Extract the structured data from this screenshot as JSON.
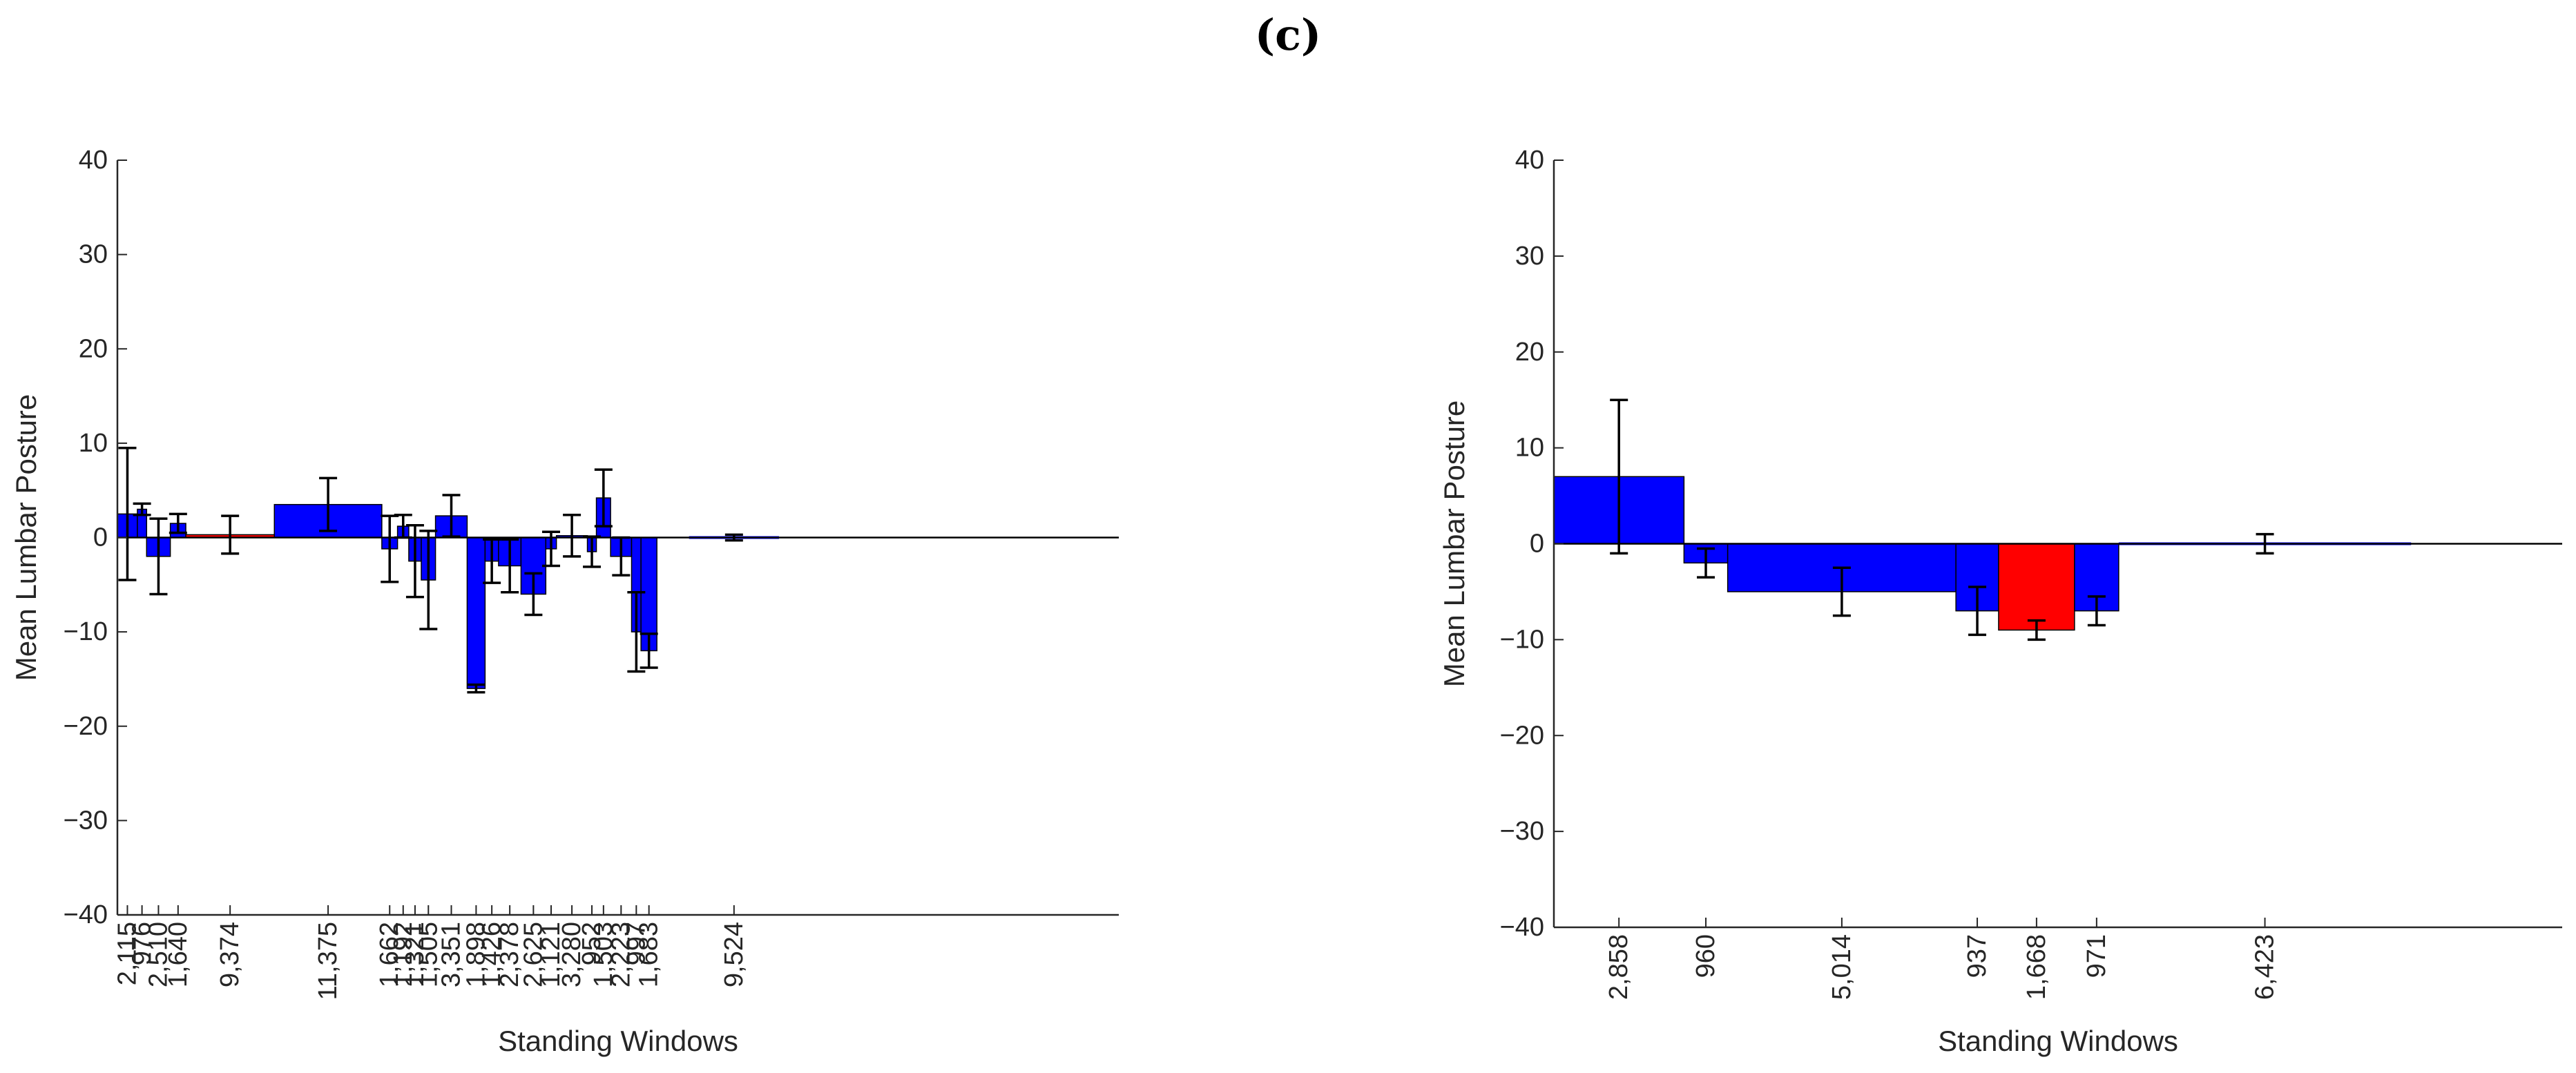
{
  "panel_label": "(c)",
  "chart_data": [
    {
      "type": "bar",
      "title": "",
      "xlabel": "Standing Windows",
      "ylabel": "Mean Lumbar Posture",
      "ylim": [
        -40,
        40
      ],
      "yticks": [
        "40",
        "30",
        "20",
        "10",
        "0",
        "−10",
        "−20",
        "−30",
        "−40"
      ],
      "x_extent": [
        0,
        106000
      ],
      "note": "Bar widths are proportional to standing window duration; categories are the duration labels.",
      "categories": [
        "2,115",
        "976",
        "2,510",
        "1,640",
        "9,374",
        "11,375",
        "1,662",
        "1,192",
        "1,321",
        "1,505",
        "3,351",
        "1,898",
        "1,426",
        "2,378",
        "2,625",
        "1,121",
        "3,280",
        "952",
        "1,503",
        "2,223",
        "997",
        "1,683",
        "9,524"
      ],
      "series": [
        {
          "name": "Mean Lumbar Posture",
          "durations": [
            2115,
            976,
            2510,
            1640,
            9374,
            11375,
            1662,
            1192,
            1321,
            1505,
            3351,
            1898,
            1426,
            2378,
            2625,
            1121,
            3280,
            952,
            1503,
            2223,
            997,
            1683,
            9524
          ],
          "gaps_before": [
            0,
            0,
            0,
            0,
            0,
            0,
            0,
            0,
            0,
            0,
            0,
            0,
            0,
            0,
            0,
            0,
            0,
            0,
            0,
            0,
            0,
            0,
            3400
          ],
          "values": [
            2.5,
            3,
            -2,
            1.5,
            0.3,
            3.5,
            -1.2,
            1.2,
            -2.5,
            -4.5,
            2.3,
            -16,
            -2.5,
            -3,
            -6,
            -1.2,
            0.2,
            -1.5,
            4.2,
            -2,
            -10,
            -12,
            0
          ],
          "errors": [
            7,
            0.6,
            4,
            1,
            2,
            2.8,
            3.5,
            1.2,
            3.8,
            5.2,
            2.2,
            0.4,
            2.3,
            2.8,
            2.2,
            1.8,
            2.2,
            1.6,
            3,
            2,
            4.2,
            1.8,
            0.3
          ],
          "colors": [
            "#0000ff",
            "#0000ff",
            "#0000ff",
            "#0000ff",
            "#ff0000",
            "#0000ff",
            "#0000ff",
            "#0000ff",
            "#0000ff",
            "#0000ff",
            "#0000ff",
            "#0000ff",
            "#0000ff",
            "#0000ff",
            "#0000ff",
            "#0000ff",
            "#0000ff",
            "#0000ff",
            "#0000ff",
            "#0000ff",
            "#0000ff",
            "#0000ff",
            "#0000ff"
          ]
        }
      ]
    },
    {
      "type": "bar",
      "title": "",
      "xlabel": "Standing Windows",
      "ylabel": "Mean Lumbar Posture",
      "ylim": [
        -40,
        40
      ],
      "yticks": [
        "40",
        "30",
        "20",
        "10",
        "0",
        "−10",
        "−20",
        "−30",
        "−40"
      ],
      "x_extent": [
        0,
        22150
      ],
      "note": "Bar widths are proportional to standing window duration; categories are the duration labels.",
      "categories": [
        "2,858",
        "960",
        "5,014",
        "937",
        "1,668",
        "971",
        "6,423"
      ],
      "series": [
        {
          "name": "Mean Lumbar Posture",
          "durations": [
            2858,
            960,
            5014,
            937,
            1668,
            971,
            6423
          ],
          "gaps_before": [
            0,
            0,
            0,
            0,
            0,
            0,
            0
          ],
          "values": [
            7,
            -2,
            -5,
            -7,
            -9,
            -7,
            0
          ],
          "errors": [
            8,
            1.5,
            2.5,
            2.5,
            1,
            1.5,
            1
          ],
          "colors": [
            "#0000ff",
            "#0000ff",
            "#0000ff",
            "#0000ff",
            "#ff0000",
            "#0000ff",
            "#0000ff"
          ]
        }
      ]
    }
  ]
}
